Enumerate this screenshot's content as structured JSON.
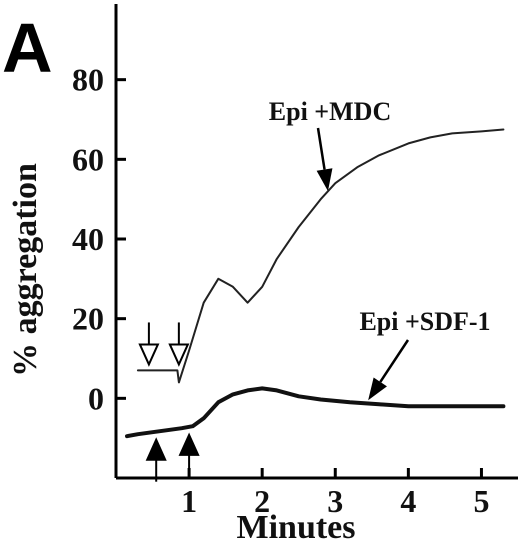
{
  "chart_data": {
    "type": "line",
    "panel_label": "A",
    "xlabel": "Minutes",
    "ylabel": "% aggregation",
    "xlim": [
      0,
      5.5
    ],
    "ylim": [
      -20,
      100
    ],
    "xticks": [
      1,
      2,
      3,
      4,
      5
    ],
    "yticks": [
      0,
      20,
      40,
      60,
      80
    ],
    "grid": false,
    "legend": "none",
    "series": [
      {
        "name": "Epi +MDC",
        "color": "#222222",
        "x": [
          0.3,
          0.84,
          0.86,
          1.0,
          1.2,
          1.4,
          1.6,
          1.8,
          2.0,
          2.2,
          2.5,
          2.8,
          3.0,
          3.3,
          3.6,
          4.0,
          4.3,
          4.6,
          5.0,
          5.3
        ],
        "y": [
          7,
          7,
          4,
          12,
          24,
          30,
          28,
          24,
          28,
          35,
          43,
          50,
          54,
          58,
          61,
          64,
          65.5,
          66.5,
          67,
          67.5
        ]
      },
      {
        "name": "Epi +SDF-1",
        "color": "#111111",
        "x": [
          0.15,
          0.3,
          0.5,
          0.7,
          0.9,
          1.05,
          1.2,
          1.4,
          1.6,
          1.8,
          2.0,
          2.2,
          2.5,
          2.8,
          3.2,
          3.6,
          4.0,
          4.5,
          5.0,
          5.3
        ],
        "y": [
          -9.5,
          -9,
          -8.5,
          -8,
          -7.5,
          -7,
          -5,
          -1,
          1,
          2,
          2.5,
          2,
          0.5,
          -0.3,
          -1,
          -1.5,
          -2,
          -2,
          -2,
          -2
        ]
      }
    ],
    "annotations": [
      {
        "text": "Epi +MDC",
        "target_series": 0,
        "target_x": 2.9,
        "target_y": 51
      },
      {
        "text": "Epi +SDF-1",
        "target_series": 1,
        "target_x": 3.45,
        "target_y": -1.5
      }
    ],
    "down_arrows_x": [
      0.45,
      0.86
    ],
    "up_arrows_x": [
      0.55,
      1.0
    ]
  }
}
